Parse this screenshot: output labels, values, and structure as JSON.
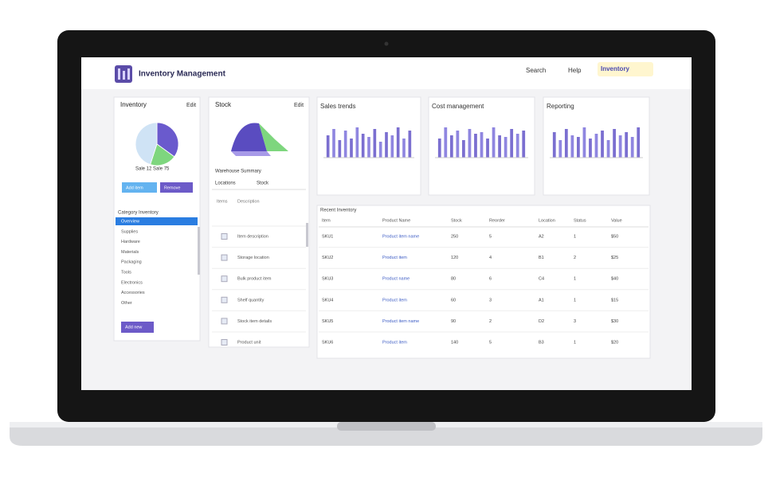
{
  "header": {
    "title": "Inventory Management",
    "nav": [
      "Search",
      "Help"
    ],
    "badge": "Inventory"
  },
  "category_panel": {
    "title": "Inventory",
    "action": "Edit",
    "pie": {
      "type": "pie",
      "values": [
        35,
        20,
        45
      ],
      "colors": [
        "#6a5acd",
        "#7ed67e",
        "#cfe3f5"
      ]
    },
    "legend": "Sale 12  Sale 75",
    "buttons": [
      "Add item",
      "Remove"
    ],
    "list_title": "Category Inventory",
    "items": [
      "Overview",
      "Supplies",
      "Hardware",
      "Materials",
      "Packaging",
      "Tools",
      "Electronics",
      "Accessories",
      "Other"
    ],
    "button": "Add new"
  },
  "stock_panel": {
    "title": "Stock",
    "action": "Edit",
    "subtitle": "Warehouse Summary",
    "tabs": [
      "Locations",
      "Stock"
    ],
    "list_header": [
      "Items",
      "Description"
    ],
    "rows": [
      "Item description",
      "Storage location",
      "Bulk product item",
      "Shelf quantity",
      "Stock item details",
      "Product unit"
    ]
  },
  "charts": [
    {
      "type": "bar",
      "title": "Sales trends",
      "color": "#7b6fd0",
      "values": [
        70,
        90,
        55,
        85,
        60,
        95,
        75,
        65,
        90,
        50,
        80,
        70,
        95,
        60,
        85
      ]
    },
    {
      "type": "bar",
      "title": "Cost management",
      "color": "#7b6fd0",
      "values": [
        60,
        95,
        70,
        85,
        55,
        90,
        75,
        80,
        60,
        95,
        70,
        65,
        90,
        75,
        85
      ]
    },
    {
      "type": "bar",
      "title": "Reporting",
      "color": "#7b6fd0",
      "values": [
        80,
        55,
        90,
        70,
        65,
        95,
        60,
        75,
        85,
        55,
        90,
        70,
        80,
        65,
        95
      ]
    }
  ],
  "table": {
    "title": "Recent Inventory",
    "columns": [
      "Item",
      "Product Name",
      "Stock",
      "Reorder",
      "Location",
      "Status",
      "Value"
    ],
    "rows": [
      [
        "SKU1",
        "Product item name",
        "250",
        "5",
        "A2",
        "1",
        "$50"
      ],
      [
        "SKU2",
        "Product item",
        "120",
        "4",
        "B1",
        "2",
        "$25"
      ],
      [
        "SKU3",
        "Product name",
        "80",
        "6",
        "C4",
        "1",
        "$40"
      ],
      [
        "SKU4",
        "Product item",
        "60",
        "3",
        "A1",
        "1",
        "$15"
      ],
      [
        "SKU5",
        "Product item name",
        "90",
        "2",
        "D2",
        "3",
        "$30"
      ],
      [
        "SKU6",
        "Product item",
        "140",
        "5",
        "B3",
        "1",
        "$20"
      ]
    ]
  }
}
